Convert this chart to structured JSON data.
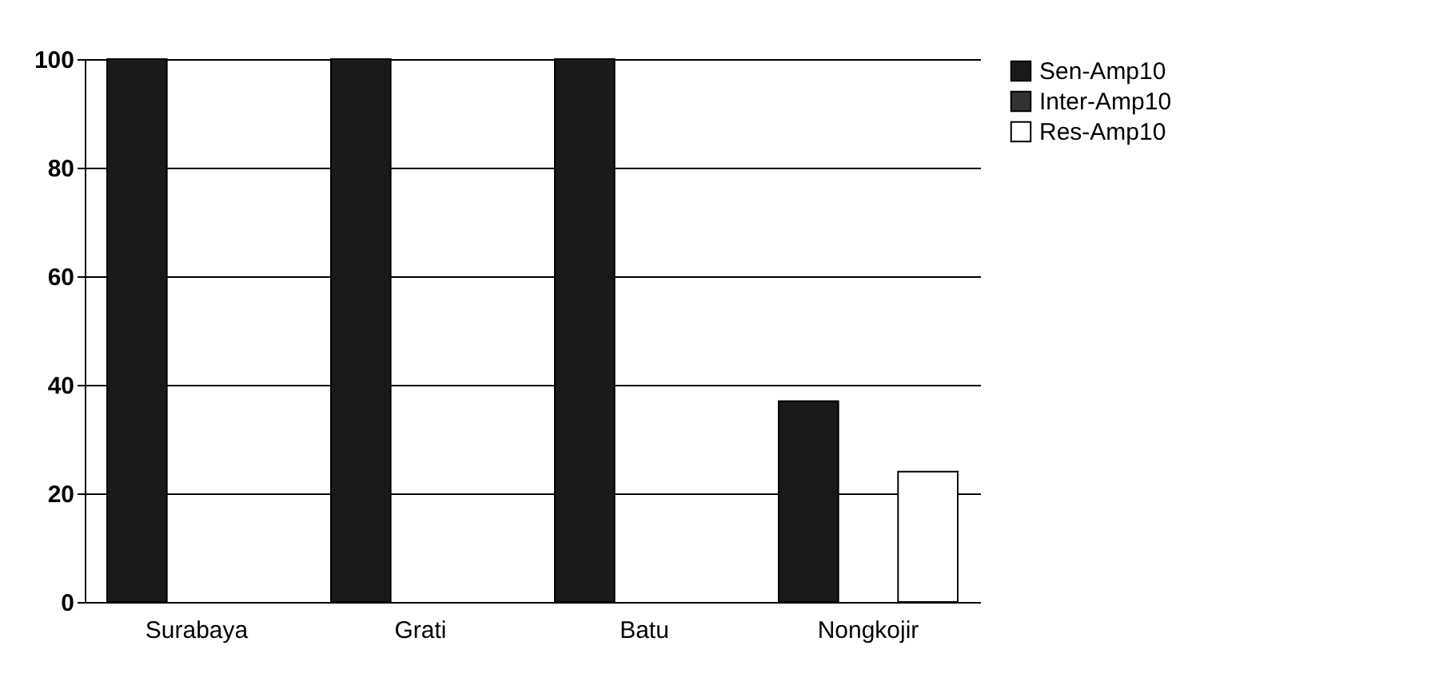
{
  "chart_data": {
    "type": "bar",
    "categories": [
      "Surabaya",
      "Grati",
      "Batu",
      "Nongkojir"
    ],
    "series": [
      {
        "name": "Sen-Amp10",
        "color": "#1a1a1a",
        "values": [
          100,
          100,
          100,
          37
        ]
      },
      {
        "name": "Inter-Amp10",
        "color": "#333333",
        "values": [
          0,
          0,
          0,
          0
        ]
      },
      {
        "name": "Res-Amp10",
        "color": "#ffffff",
        "values": [
          0,
          0,
          0,
          24
        ]
      }
    ],
    "ylim": [
      0,
      100
    ],
    "yticks": [
      0,
      20,
      40,
      60,
      80,
      100
    ],
    "grid": "y",
    "legend": "right"
  }
}
